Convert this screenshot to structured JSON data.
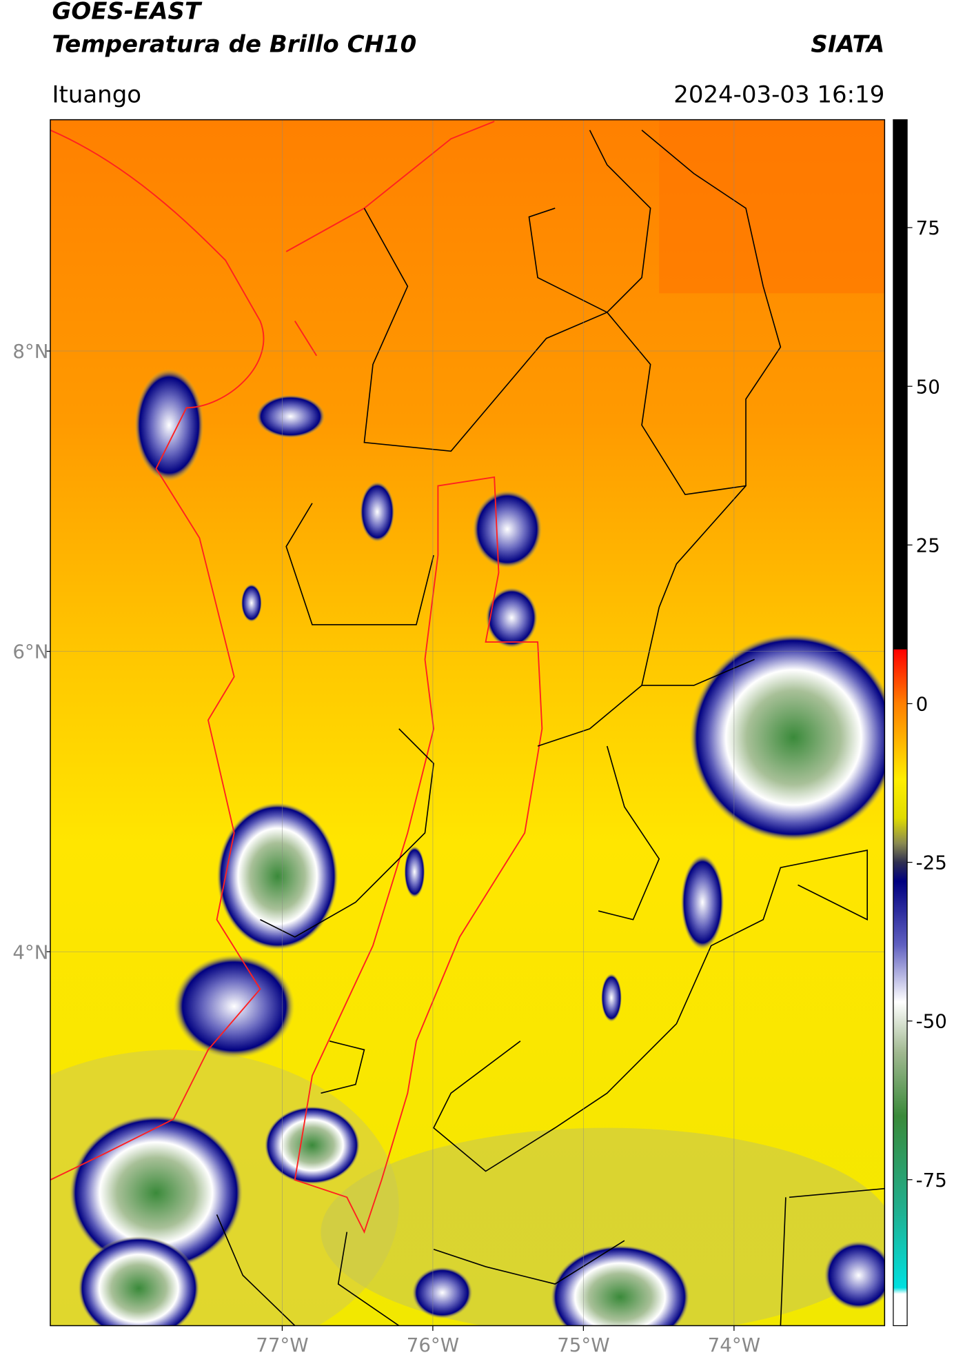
{
  "header": {
    "title": "GOES-EAST",
    "subtitle": "Temperatura de Brillo CH10",
    "agency": "SIATA",
    "location": "Ituango",
    "datetime": "2024-03-03 16:19"
  },
  "map": {
    "xlim": [
      -78.54,
      -73.0
    ],
    "ylim": [
      1.51,
      9.54
    ],
    "grid": true,
    "xticks": [
      {
        "value": -77,
        "label": "77°W"
      },
      {
        "value": -76,
        "label": "76°W"
      },
      {
        "value": -75,
        "label": "75°W"
      },
      {
        "value": -74,
        "label": "74°W"
      }
    ],
    "yticks": [
      {
        "value": 8,
        "label": "8°N"
      },
      {
        "value": 6,
        "label": "6°N"
      },
      {
        "value": 4,
        "label": "4°N"
      }
    ]
  },
  "colorbar": {
    "lim": [
      -98,
      92
    ],
    "ticks": [
      75,
      50,
      25,
      0,
      -25,
      -50,
      -75
    ],
    "colors": [
      {
        "value": 92,
        "color": "#000000"
      },
      {
        "value": 8.6,
        "color": "#000000"
      },
      {
        "value": 8.5,
        "color": "#ff0000"
      },
      {
        "value": 0,
        "color": "#ff7f00"
      },
      {
        "value": -12,
        "color": "#ffee00"
      },
      {
        "value": -18,
        "color": "#e0dc00"
      },
      {
        "value": -22,
        "color": "#8a8a50"
      },
      {
        "value": -25,
        "color": "#303050"
      },
      {
        "value": -28,
        "color": "#000080"
      },
      {
        "value": -38,
        "color": "#6060c0"
      },
      {
        "value": -47,
        "color": "#ffffff"
      },
      {
        "value": -55,
        "color": "#a0b890"
      },
      {
        "value": -65,
        "color": "#3a8a3a"
      },
      {
        "value": -80,
        "color": "#20b090"
      },
      {
        "value": -92,
        "color": "#00e0e0"
      },
      {
        "value": -93,
        "color": "#ffffff"
      },
      {
        "value": -98,
        "color": "#ffffff"
      }
    ]
  }
}
